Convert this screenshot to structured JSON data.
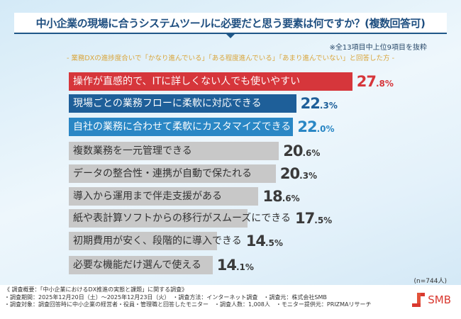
{
  "header": {
    "title": "中小企業の現場に合うシステムツールに必要だと思う要素は何ですか？(複数回答可)",
    "note": "※全13項目中上位9項目を抜粋",
    "subtitle": "- 業務DXの進捗度合いで「かなり進んでいる」「ある程度進んでいる」「あまり進んでいない」と回答した方 -"
  },
  "chart_data": {
    "type": "bar",
    "orientation": "horizontal",
    "categories": [
      "操作が直感的で、ITに詳しくない人でも使いやすい",
      "現場ごとの業務フローに柔軟に対応できる",
      "自社の業務に合わせて柔軟にカスタマイズできる",
      "複数業務を一元管理できる",
      "データの整合性・連携が自動で保たれる",
      "導入から運用まで伴走支援がある",
      "紙や表計算ソフトからの移行がスムーズにできる",
      "初期費用が安く、段階的に導入できる",
      "必要な機能だけ選んで使える"
    ],
    "values": [
      27.8,
      22.3,
      22.0,
      20.6,
      20.3,
      18.6,
      17.5,
      14.5,
      14.1
    ],
    "unit": "%",
    "colors": [
      "#d6363b",
      "#1e5f99",
      "#2a87c5",
      "#c8c8c8",
      "#c8c8c8",
      "#c8c8c8",
      "#c8c8c8",
      "#c8c8c8",
      "#c8c8c8"
    ],
    "value_colors": [
      "#d6363b",
      "#1e5f99",
      "#2a87c5",
      "#3a3a3a",
      "#3a3a3a",
      "#3a3a3a",
      "#3a3a3a",
      "#3a3a3a",
      "#3a3a3a"
    ],
    "sample": "(n=744人)"
  },
  "footer": {
    "lines": [
      "《 調査概要：「中小企業におけるDX推進の実態と課題」に関する調査》",
      "・調査期間：2025年12月20日（土）～2025年12月23日（火）　・調査方法：インターネット調査　・調査元：株式会社SMB",
      "・調査対象：調査回答時に中小企業の経営者・役員・管理職と回答したモニター　・調査人数：1,008人　・モニター提供元：PRIZMAリサーチ"
    ],
    "logo": "SMB",
    "logo_color": "#d9382f"
  }
}
